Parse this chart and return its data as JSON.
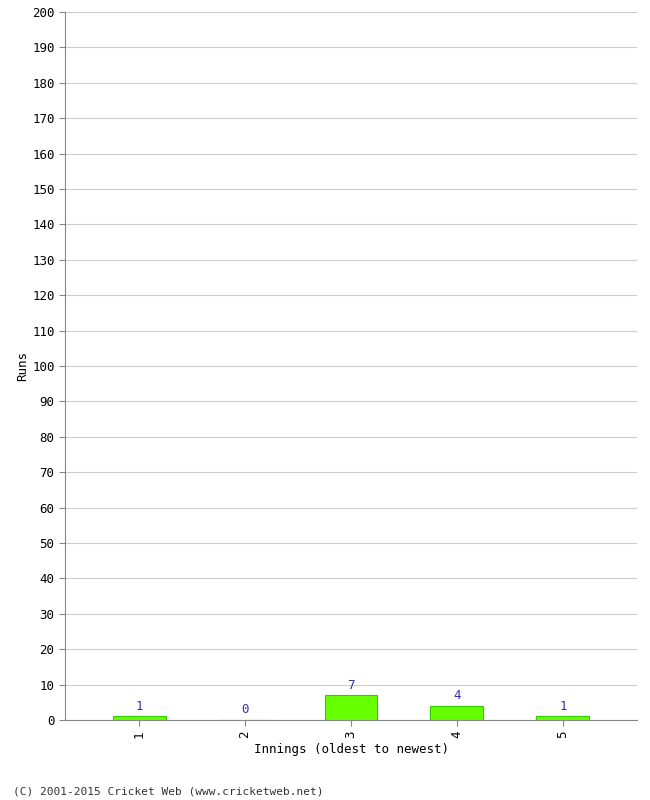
{
  "xlabel": "Innings (oldest to newest)",
  "ylabel": "Runs",
  "categories": [
    1,
    2,
    3,
    4,
    5
  ],
  "values": [
    1,
    0,
    7,
    4,
    1
  ],
  "bar_color": "#66ff00",
  "bar_edge_color": "#33cc00",
  "value_labels": [
    "1",
    "0",
    "7",
    "4",
    "1"
  ],
  "value_label_color": "#3333aa",
  "ylim": [
    0,
    200
  ],
  "ytick_step": 10,
  "background_color": "#ffffff",
  "grid_color": "#cccccc",
  "footer": "(C) 2001-2015 Cricket Web (www.cricketweb.net)"
}
